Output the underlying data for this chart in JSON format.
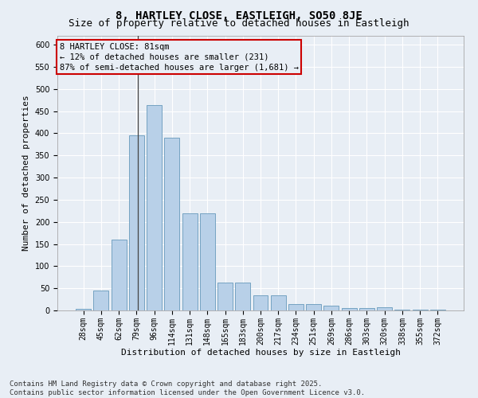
{
  "title1": "8, HARTLEY CLOSE, EASTLEIGH, SO50 8JE",
  "title2": "Size of property relative to detached houses in Eastleigh",
  "xlabel": "Distribution of detached houses by size in Eastleigh",
  "ylabel": "Number of detached properties",
  "categories": [
    "28sqm",
    "45sqm",
    "62sqm",
    "79sqm",
    "96sqm",
    "114sqm",
    "131sqm",
    "148sqm",
    "165sqm",
    "183sqm",
    "200sqm",
    "217sqm",
    "234sqm",
    "251sqm",
    "269sqm",
    "286sqm",
    "303sqm",
    "320sqm",
    "338sqm",
    "355sqm",
    "372sqm"
  ],
  "values": [
    3,
    45,
    160,
    395,
    463,
    390,
    220,
    220,
    63,
    63,
    35,
    35,
    14,
    14,
    10,
    6,
    6,
    8,
    1,
    1,
    1
  ],
  "bar_color": "#b8d0e8",
  "bar_edge_color": "#6699bb",
  "background_color": "#e8eef5",
  "grid_color": "#ffffff",
  "annotation_box_color": "#cc0000",
  "annotation_text": [
    "8 HARTLEY CLOSE: 81sqm",
    "← 12% of detached houses are smaller (231)",
    "87% of semi-detached houses are larger (1,681) →"
  ],
  "vline_color": "#444444",
  "ylim": [
    0,
    620
  ],
  "yticks": [
    0,
    50,
    100,
    150,
    200,
    250,
    300,
    350,
    400,
    450,
    500,
    550,
    600
  ],
  "footer": "Contains HM Land Registry data © Crown copyright and database right 2025.\nContains public sector information licensed under the Open Government Licence v3.0.",
  "title1_fontsize": 10,
  "title2_fontsize": 9,
  "xlabel_fontsize": 8,
  "ylabel_fontsize": 8,
  "tick_fontsize": 7,
  "footer_fontsize": 6.5,
  "ann_fontsize": 7.5
}
